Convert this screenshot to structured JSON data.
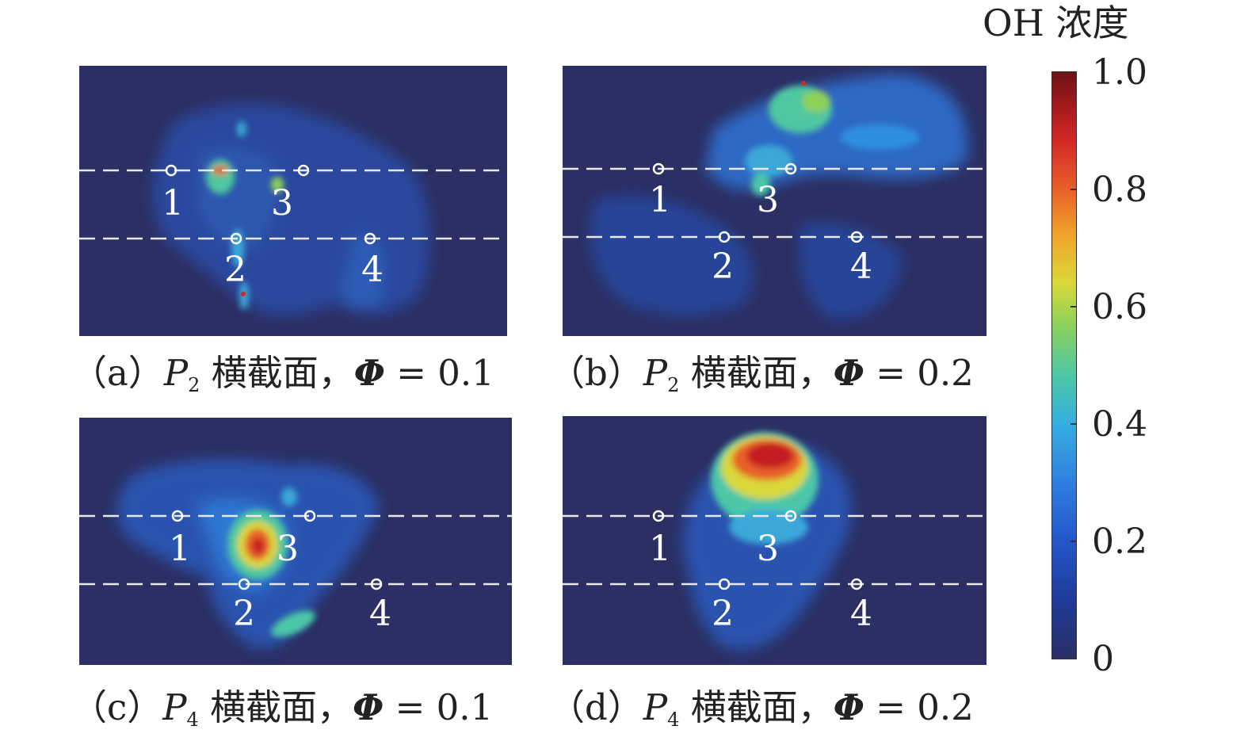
{
  "colorbar": {
    "title": "OH 浓度",
    "ticks": [
      "1.0",
      "0.8",
      "0.6",
      "0.4",
      "0.2",
      "0"
    ],
    "colors": [
      "#2a2f64",
      "#1f3a9a",
      "#2f7fe0",
      "#4cc7a8",
      "#d9d83a",
      "#e8602a",
      "#a61a1e"
    ]
  },
  "point_labels": [
    "1",
    "2",
    "3",
    "4"
  ],
  "panels": [
    {
      "id": "a",
      "caption_prefix": "（a）",
      "plane": "P",
      "plane_sub": "2",
      "section": "横截面，",
      "phi_symbol": "Φ",
      "eq": " = 0.1"
    },
    {
      "id": "b",
      "caption_prefix": "（b）",
      "plane": "P",
      "plane_sub": "2",
      "section": "横截面，",
      "phi_symbol": "Φ",
      "eq": " = 0.2"
    },
    {
      "id": "c",
      "caption_prefix": "（c）",
      "plane": "P",
      "plane_sub": "4",
      "section": "横截面，",
      "phi_symbol": "Φ",
      "eq": " = 0.1"
    },
    {
      "id": "d",
      "caption_prefix": "（d）",
      "plane": "P",
      "plane_sub": "4",
      "section": "横截面，",
      "phi_symbol": "Φ",
      "eq": " = 0.2"
    }
  ]
}
